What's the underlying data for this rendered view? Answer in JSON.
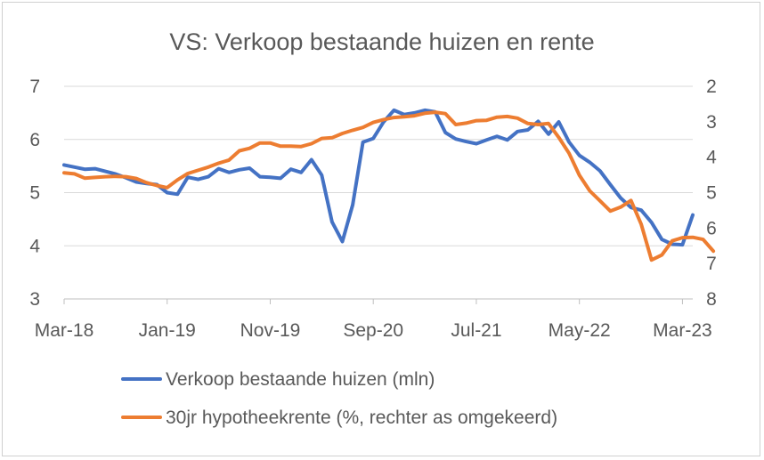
{
  "chart_data": {
    "type": "line",
    "title": "VS: Verkoop bestaande huizen en rente",
    "xlabel": "",
    "ylabel": "",
    "x_tick_labels": [
      "Mar-18",
      "Jan-19",
      "Nov-19",
      "Sep-20",
      "Jul-21",
      "May-22",
      "Mar-23"
    ],
    "left_axis": {
      "ylim": [
        3,
        7
      ],
      "ticks": [
        "3",
        "4",
        "5",
        "6",
        "7"
      ]
    },
    "right_axis": {
      "ylim": [
        2,
        8
      ],
      "inverted": true,
      "ticks": [
        "2",
        "3",
        "4",
        "5",
        "6",
        "7",
        "8"
      ]
    },
    "grid": "horizontal",
    "legend_position": "bottom",
    "series": [
      {
        "name": "Verkoop bestaande huizen (mln)",
        "axis": "left",
        "color": "#4472C4",
        "start": "Mar-18",
        "values": [
          5.52,
          5.48,
          5.44,
          5.45,
          5.4,
          5.35,
          5.28,
          5.2,
          5.17,
          5.15,
          5.0,
          4.97,
          5.29,
          5.25,
          5.3,
          5.45,
          5.38,
          5.43,
          5.46,
          5.3,
          5.29,
          5.27,
          5.44,
          5.38,
          5.62,
          5.33,
          4.45,
          4.08,
          4.77,
          5.95,
          6.02,
          6.33,
          6.55,
          6.47,
          6.5,
          6.55,
          6.52,
          6.13,
          6.01,
          5.96,
          5.92,
          5.99,
          6.06,
          5.99,
          6.15,
          6.18,
          6.34,
          6.1,
          6.33,
          5.95,
          5.7,
          5.57,
          5.41,
          5.15,
          4.9,
          4.72,
          4.67,
          4.44,
          4.12,
          4.03,
          4.02,
          4.58
        ]
      },
      {
        "name": "30jr hypotheekrente (%, rechter as omgekeerd)",
        "axis": "right",
        "color": "#ED7D31",
        "start": "Mar-18",
        "values": [
          4.44,
          4.47,
          4.59,
          4.57,
          4.55,
          4.54,
          4.55,
          4.6,
          4.72,
          4.8,
          4.86,
          4.64,
          4.46,
          4.37,
          4.28,
          4.17,
          4.08,
          3.82,
          3.75,
          3.6,
          3.6,
          3.69,
          3.69,
          3.7,
          3.62,
          3.47,
          3.45,
          3.33,
          3.24,
          3.16,
          3.02,
          2.94,
          2.88,
          2.86,
          2.83,
          2.76,
          2.73,
          2.77,
          3.08,
          3.04,
          2.97,
          2.96,
          2.87,
          2.85,
          2.9,
          3.05,
          3.08,
          3.05,
          3.44,
          3.89,
          4.51,
          4.95,
          5.23,
          5.52,
          5.41,
          5.22,
          5.89,
          6.9,
          6.76,
          6.36,
          6.27,
          6.26,
          6.32,
          6.65
        ]
      }
    ]
  }
}
